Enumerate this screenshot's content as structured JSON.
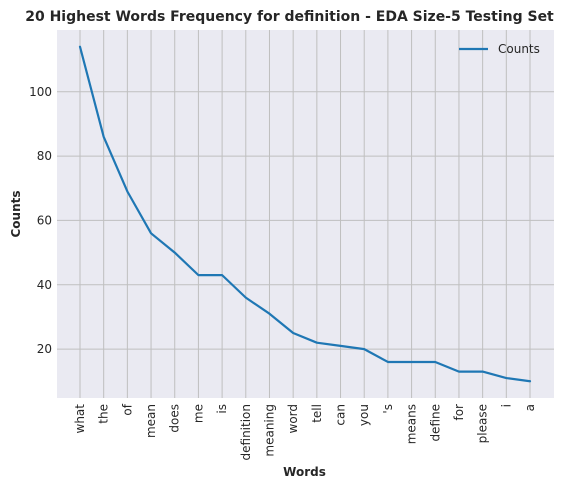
{
  "chart_data": {
    "type": "line",
    "title": "20 Highest Words Frequency for definition - EDA Size-5 Testing Set",
    "xlabel": "Words",
    "ylabel": "Counts",
    "categories": [
      "what",
      "the",
      "of",
      "mean",
      "does",
      "me",
      "is",
      "definition",
      "meaning",
      "word",
      "tell",
      "can",
      "you",
      "'s",
      "means",
      "define",
      "for",
      "please",
      "i",
      "a"
    ],
    "series": [
      {
        "name": "Counts",
        "values": [
          114,
          86,
          69,
          56,
          50,
          43,
          43,
          36,
          31,
          25,
          22,
          21,
          20,
          16,
          16,
          16,
          13,
          13,
          11,
          10
        ],
        "color": "#1f77b4"
      }
    ],
    "ylim": [
      4.8,
      119.2
    ],
    "yticks": [
      20,
      40,
      60,
      80,
      100
    ],
    "grid": true,
    "legend_position": "top-right",
    "background_color": "#eaeaf2",
    "grid_color": "#bfbfbf"
  }
}
